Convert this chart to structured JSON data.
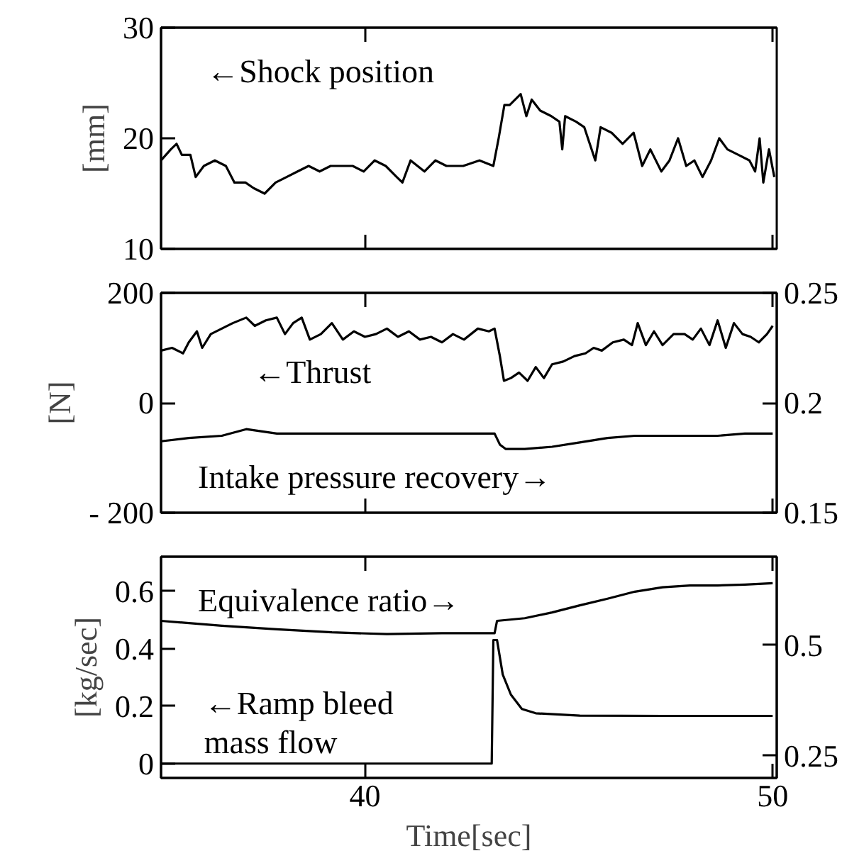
{
  "chart_data": [
    {
      "type": "line",
      "ylabel": "[mm]",
      "xlim": [
        35,
        50.1
      ],
      "ylim": [
        10,
        30
      ],
      "yticks": [
        10,
        20,
        30
      ],
      "tick_labels": "y",
      "grid": false,
      "annotations": [
        "←Shock position"
      ],
      "series": [
        {
          "color": "#000000",
          "x": [
            35.0,
            35.24,
            35.38,
            35.51,
            35.72,
            35.85,
            36.05,
            36.32,
            36.59,
            36.8,
            37.07,
            37.27,
            37.54,
            37.81,
            38.08,
            38.35,
            38.62,
            38.89,
            39.16,
            39.7,
            39.97,
            40.24,
            40.51,
            40.78,
            40.92,
            41.12,
            41.46,
            41.73,
            42.0,
            42.41,
            42.81,
            43.15,
            43.28,
            43.42,
            43.55,
            43.82,
            43.96,
            44.09,
            44.3,
            44.57,
            44.77,
            44.84,
            44.91,
            45.18,
            45.38,
            45.65,
            45.78,
            46.05,
            46.32,
            46.59,
            46.8,
            47.0,
            47.27,
            47.47,
            47.68,
            47.88,
            48.08,
            48.28,
            48.49,
            48.69,
            48.89,
            49.16,
            49.43,
            49.57,
            49.68,
            49.77,
            49.91,
            50.04
          ],
          "values": [
            18.0,
            19.0,
            19.5,
            18.5,
            18.5,
            16.5,
            17.5,
            18.0,
            17.5,
            16.0,
            16.0,
            15.5,
            15.0,
            16.0,
            16.5,
            17.0,
            17.5,
            17.0,
            17.5,
            17.5,
            17.0,
            18.0,
            17.5,
            16.5,
            16.0,
            18.0,
            17.0,
            18.0,
            17.5,
            17.5,
            18.0,
            17.5,
            20.0,
            23.0,
            23.0,
            24.0,
            22.0,
            23.5,
            22.5,
            22.0,
            21.5,
            19.0,
            22.0,
            21.5,
            21.0,
            18.0,
            21.0,
            20.5,
            19.5,
            20.5,
            17.5,
            19.0,
            17.0,
            18.0,
            20.0,
            17.5,
            18.0,
            16.5,
            18.0,
            20.0,
            19.0,
            18.5,
            18.0,
            17.0,
            20.0,
            16.0,
            19.0,
            16.5
          ]
        }
      ]
    },
    {
      "type": "line",
      "ylabel": "[N]",
      "xlim": [
        35,
        50.1
      ],
      "ylim": [
        -200,
        200
      ],
      "yticks": [
        {
          "value": -200,
          "label": "- 200"
        },
        0,
        200
      ],
      "y2lim": [
        0.15,
        0.25
      ],
      "y2ticks": [
        0.15,
        0.2,
        0.25
      ],
      "tick_labels": "y",
      "grid": false,
      "annotations": [
        "←Thrust",
        "Intake pressure recovery→"
      ],
      "series": [
        {
          "color": "#000000",
          "x": [
            35.0,
            35.27,
            35.54,
            35.68,
            35.88,
            36.01,
            36.22,
            36.49,
            36.76,
            37.09,
            37.3,
            37.57,
            37.84,
            38.04,
            38.24,
            38.45,
            38.65,
            38.92,
            39.19,
            39.46,
            39.73,
            40.0,
            40.27,
            40.54,
            40.81,
            41.08,
            41.35,
            41.62,
            41.89,
            42.16,
            42.43,
            42.77,
            43.04,
            43.18,
            43.31,
            43.41,
            43.58,
            43.78,
            43.99,
            44.19,
            44.39,
            44.59,
            44.86,
            45.14,
            45.41,
            45.61,
            45.81,
            46.08,
            46.35,
            46.55,
            46.69,
            46.89,
            47.09,
            47.3,
            47.57,
            47.84,
            48.04,
            48.24,
            48.45,
            48.65,
            48.85,
            49.05,
            49.26,
            49.46,
            49.66,
            49.86,
            50.0
          ],
          "values": [
            95,
            100,
            90,
            110,
            130,
            100,
            125,
            135,
            145,
            155,
            140,
            150,
            155,
            125,
            145,
            155,
            115,
            125,
            145,
            115,
            130,
            120,
            125,
            135,
            120,
            130,
            115,
            120,
            110,
            125,
            115,
            135,
            130,
            135,
            85,
            40,
            45,
            55,
            40,
            65,
            45,
            70,
            75,
            85,
            90,
            100,
            95,
            110,
            115,
            105,
            145,
            105,
            130,
            105,
            125,
            125,
            115,
            135,
            105,
            150,
            100,
            145,
            125,
            120,
            110,
            125,
            140
          ]
        },
        {
          "color": "#000000",
          "axis": "y2",
          "x": [
            35.0,
            35.68,
            36.49,
            37.09,
            37.84,
            38.65,
            39.73,
            40.81,
            41.89,
            42.7,
            43.18,
            43.31,
            43.45,
            43.92,
            44.59,
            45.27,
            45.95,
            46.62,
            47.97,
            48.65,
            49.32,
            50.0
          ],
          "values": [
            0.1825,
            0.184,
            0.185,
            0.188,
            0.186,
            0.186,
            0.186,
            0.186,
            0.186,
            0.186,
            0.186,
            0.181,
            0.179,
            0.179,
            0.18,
            0.182,
            0.184,
            0.185,
            0.185,
            0.185,
            0.186,
            0.186
          ]
        }
      ]
    },
    {
      "type": "line",
      "xlabel": "Time[sec]",
      "ylabel": "[kg/sec]",
      "xlim": [
        35,
        50.1
      ],
      "xticks": [
        40,
        50
      ],
      "ylim": [
        -0.05,
        0.72
      ],
      "yticks": [
        0,
        0.2,
        0.4,
        0.6
      ],
      "y2lim": [
        0.2,
        0.7
      ],
      "y2ticks": [
        0.25,
        0.5
      ],
      "grid": false,
      "annotations": [
        "Equivalence ratio→",
        "←Ramp bleed\nmass flow"
      ],
      "series": [
        {
          "color": "#000000",
          "x": [
            35.0,
            43.11,
            43.15,
            43.24,
            43.38,
            43.58,
            43.85,
            44.19,
            45.27,
            47.3,
            50.0
          ],
          "values": [
            0,
            0,
            0.43,
            0.43,
            0.31,
            0.24,
            0.19,
            0.175,
            0.167,
            0.166,
            0.166
          ]
        },
        {
          "color": "#000000",
          "axis": "y2",
          "x": [
            35.0,
            36.49,
            37.84,
            39.19,
            40.54,
            41.89,
            43.18,
            43.24,
            43.92,
            44.59,
            45.27,
            45.95,
            46.62,
            47.3,
            47.97,
            48.65,
            49.32,
            50.0
          ],
          "values": [
            0.555,
            0.544,
            0.536,
            0.529,
            0.525,
            0.527,
            0.527,
            0.555,
            0.561,
            0.574,
            0.59,
            0.605,
            0.621,
            0.631,
            0.635,
            0.635,
            0.637,
            0.64
          ]
        }
      ]
    }
  ]
}
